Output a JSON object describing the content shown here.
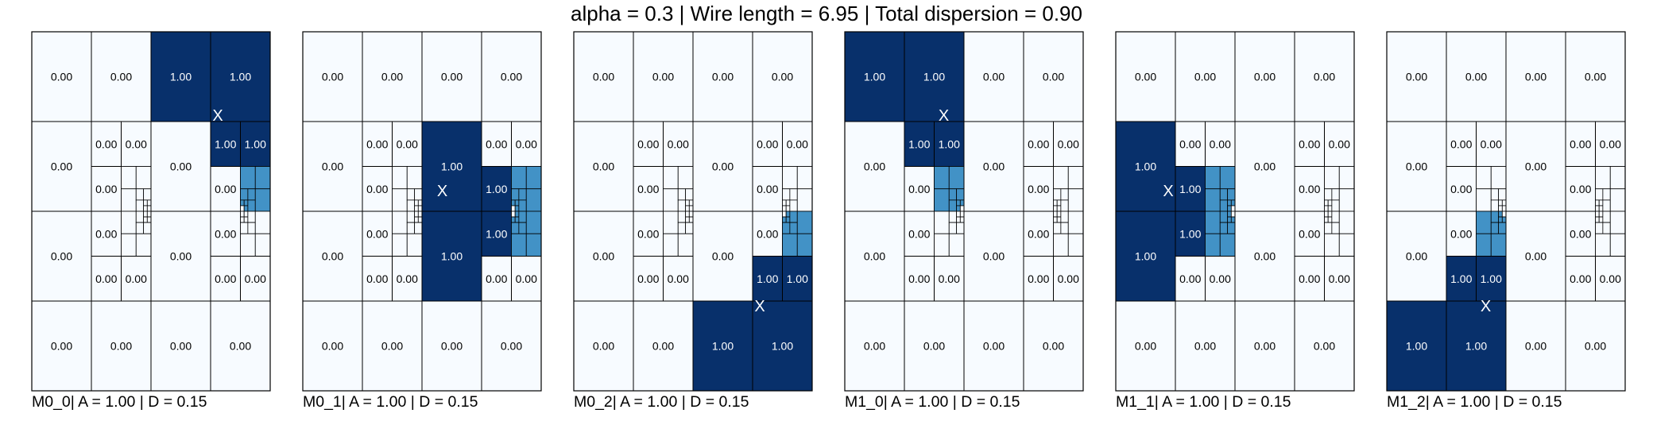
{
  "figure": {
    "title": "alpha = 0.3 | Wire length = 6.95 | Total dispersion = 0.90",
    "color_low": "#f7fbff",
    "color_high": "#08306b",
    "color_mid": "#4292c6",
    "grid_line_color": "#000000",
    "marker_symbol": "X"
  },
  "chart_data": [
    {
      "type": "heatmap",
      "name": "M0_0",
      "caption": "M0_0| A = 1.00 | D = 0.15",
      "cells": [
        [
          "0.00",
          "0.00",
          "1.00",
          "1.00"
        ],
        [
          "0.00",
          "q",
          "0.00",
          "q"
        ],
        [
          "0.00",
          "q",
          "0.00",
          "q"
        ],
        [
          "0.00",
          "0.00",
          "0.00",
          "0.00"
        ]
      ],
      "sub_cells": {
        "1,1": [
          "0.00",
          "0.00",
          "0.00",
          "q"
        ],
        "1,3": [
          "1.00",
          "1.00",
          "0.00",
          "q"
        ],
        "2,1": [
          "0.00",
          "q",
          "0.00",
          "0.00"
        ],
        "2,3": [
          "0.00",
          "q",
          "0.00",
          "0.00"
        ]
      },
      "marked_cell": "0,3"
    },
    {
      "type": "heatmap",
      "name": "M0_1",
      "caption": "M0_1| A = 1.00 | D = 0.15",
      "cells": [
        [
          "0.00",
          "0.00",
          "0.00",
          "0.00"
        ],
        [
          "0.00",
          "q",
          "1.00",
          "q"
        ],
        [
          "0.00",
          "q",
          "1.00",
          "q"
        ],
        [
          "0.00",
          "0.00",
          "0.00",
          "0.00"
        ]
      ],
      "sub_cells": {
        "1,1": [
          "0.00",
          "0.00",
          "0.00",
          "q"
        ],
        "1,3": [
          "0.00",
          "0.00",
          "1.00",
          "q"
        ],
        "2,1": [
          "0.00",
          "q",
          "0.00",
          "0.00"
        ],
        "2,3": [
          "1.00",
          "q",
          "0.00",
          "0.00"
        ]
      },
      "marked_cell": "1,2"
    },
    {
      "type": "heatmap",
      "name": "M0_2",
      "caption": "M0_2| A = 1.00 | D = 0.15",
      "cells": [
        [
          "0.00",
          "0.00",
          "0.00",
          "0.00"
        ],
        [
          "0.00",
          "q",
          "0.00",
          "q"
        ],
        [
          "0.00",
          "q",
          "0.00",
          "q"
        ],
        [
          "0.00",
          "0.00",
          "1.00",
          "1.00"
        ]
      ],
      "sub_cells": {
        "1,1": [
          "0.00",
          "0.00",
          "0.00",
          "q"
        ],
        "1,3": [
          "0.00",
          "0.00",
          "0.00",
          "q"
        ],
        "2,1": [
          "0.00",
          "q",
          "0.00",
          "0.00"
        ],
        "2,3": [
          "0.00",
          "q",
          "1.00",
          "1.00"
        ]
      },
      "marked_cell": "3,3"
    },
    {
      "type": "heatmap",
      "name": "M1_0",
      "caption": "M1_0| A = 1.00 | D = 0.15",
      "cells": [
        [
          "1.00",
          "1.00",
          "0.00",
          "0.00"
        ],
        [
          "0.00",
          "q",
          "0.00",
          "q"
        ],
        [
          "0.00",
          "q",
          "0.00",
          "q"
        ],
        [
          "0.00",
          "0.00",
          "0.00",
          "0.00"
        ]
      ],
      "sub_cells": {
        "1,1": [
          "1.00",
          "1.00",
          "0.00",
          "q"
        ],
        "1,3": [
          "0.00",
          "0.00",
          "0.00",
          "q"
        ],
        "2,1": [
          "0.00",
          "q",
          "0.00",
          "0.00"
        ],
        "2,3": [
          "0.00",
          "q",
          "0.00",
          "0.00"
        ]
      },
      "marked_cell": "0,1"
    },
    {
      "type": "heatmap",
      "name": "M1_1",
      "caption": "M1_1| A = 1.00 | D = 0.15",
      "cells": [
        [
          "0.00",
          "0.00",
          "0.00",
          "0.00"
        ],
        [
          "1.00",
          "q",
          "0.00",
          "q"
        ],
        [
          "1.00",
          "q",
          "0.00",
          "q"
        ],
        [
          "0.00",
          "0.00",
          "0.00",
          "0.00"
        ]
      ],
      "sub_cells": {
        "1,1": [
          "0.00",
          "0.00",
          "1.00",
          "q"
        ],
        "1,3": [
          "0.00",
          "0.00",
          "0.00",
          "q"
        ],
        "2,1": [
          "1.00",
          "q",
          "0.00",
          "0.00"
        ],
        "2,3": [
          "0.00",
          "q",
          "0.00",
          "0.00"
        ]
      },
      "marked_cell": "1,0"
    },
    {
      "type": "heatmap",
      "name": "M1_2",
      "caption": "M1_2| A = 1.00 | D = 0.15",
      "cells": [
        [
          "0.00",
          "0.00",
          "0.00",
          "0.00"
        ],
        [
          "0.00",
          "q",
          "0.00",
          "q"
        ],
        [
          "0.00",
          "q",
          "0.00",
          "q"
        ],
        [
          "1.00",
          "1.00",
          "0.00",
          "0.00"
        ]
      ],
      "sub_cells": {
        "1,1": [
          "0.00",
          "0.00",
          "0.00",
          "q"
        ],
        "1,3": [
          "0.00",
          "0.00",
          "0.00",
          "q"
        ],
        "2,1": [
          "0.00",
          "q",
          "1.00",
          "1.00"
        ],
        "2,3": [
          "0.00",
          "q",
          "0.00",
          "0.00"
        ]
      },
      "marked_cell": "3,1"
    }
  ]
}
